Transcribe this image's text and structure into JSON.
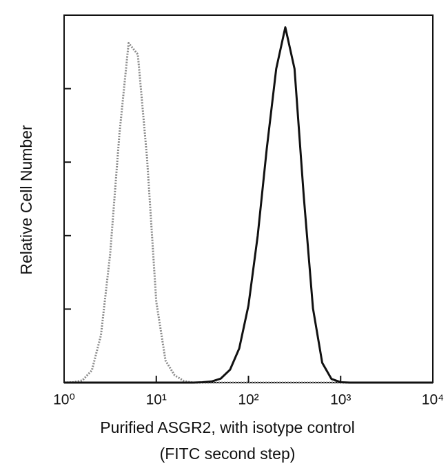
{
  "chart_data": {
    "type": "line",
    "ylabel": "Relative Cell Number",
    "xlabel": "Purified ASGR2, with isotype control",
    "xlabel_sub": "(FITC second step)",
    "xscale": "log",
    "xlim": [
      1,
      10000
    ],
    "xticks": [
      {
        "value": 1,
        "label": "10⁰"
      },
      {
        "value": 10,
        "label": "10¹"
      },
      {
        "value": 100,
        "label": "10²"
      },
      {
        "value": 1000,
        "label": "10³"
      },
      {
        "value": 10000,
        "label": "10⁴"
      }
    ],
    "ylim": [
      0,
      100
    ],
    "yticks": [
      0,
      20,
      40,
      60,
      80
    ],
    "x": [
      1,
      1.26,
      1.58,
      2,
      2.51,
      3.16,
      3.98,
      5.01,
      6.31,
      7.94,
      10,
      12.6,
      15.8,
      20,
      25.1,
      31.6,
      39.8,
      50.1,
      63.1,
      79.4,
      100,
      126,
      158,
      200,
      251,
      316,
      398,
      501,
      631,
      794,
      1000,
      1259,
      1585,
      1995,
      2512,
      3162,
      3981,
      5012,
      6310,
      7943,
      10000
    ],
    "series": [
      {
        "color": "#8a8a8a",
        "dash": true,
        "values": [
          0,
          0.1,
          0.6,
          3.3,
          12.9,
          35,
          67.6,
          92.4,
          89.3,
          61.1,
          22,
          6,
          2,
          0.4,
          0,
          0,
          0,
          0,
          0,
          0,
          0,
          0,
          0,
          0,
          0,
          0,
          0,
          0,
          0,
          0,
          0,
          0,
          0,
          0,
          0,
          0,
          0,
          0,
          0,
          0,
          0
        ]
      },
      {
        "color": "#111111",
        "dash": false,
        "values": [
          0,
          0,
          0,
          0,
          0,
          0,
          0,
          0,
          0,
          0,
          0,
          0,
          0,
          0,
          0,
          0.1,
          0.3,
          1.1,
          3.5,
          9.3,
          21,
          40,
          63.7,
          85.4,
          96.7,
          85.4,
          50.7,
          20.2,
          5.4,
          1,
          0.1,
          0,
          0,
          0,
          0,
          0,
          0,
          0,
          0,
          0,
          0
        ]
      }
    ]
  }
}
